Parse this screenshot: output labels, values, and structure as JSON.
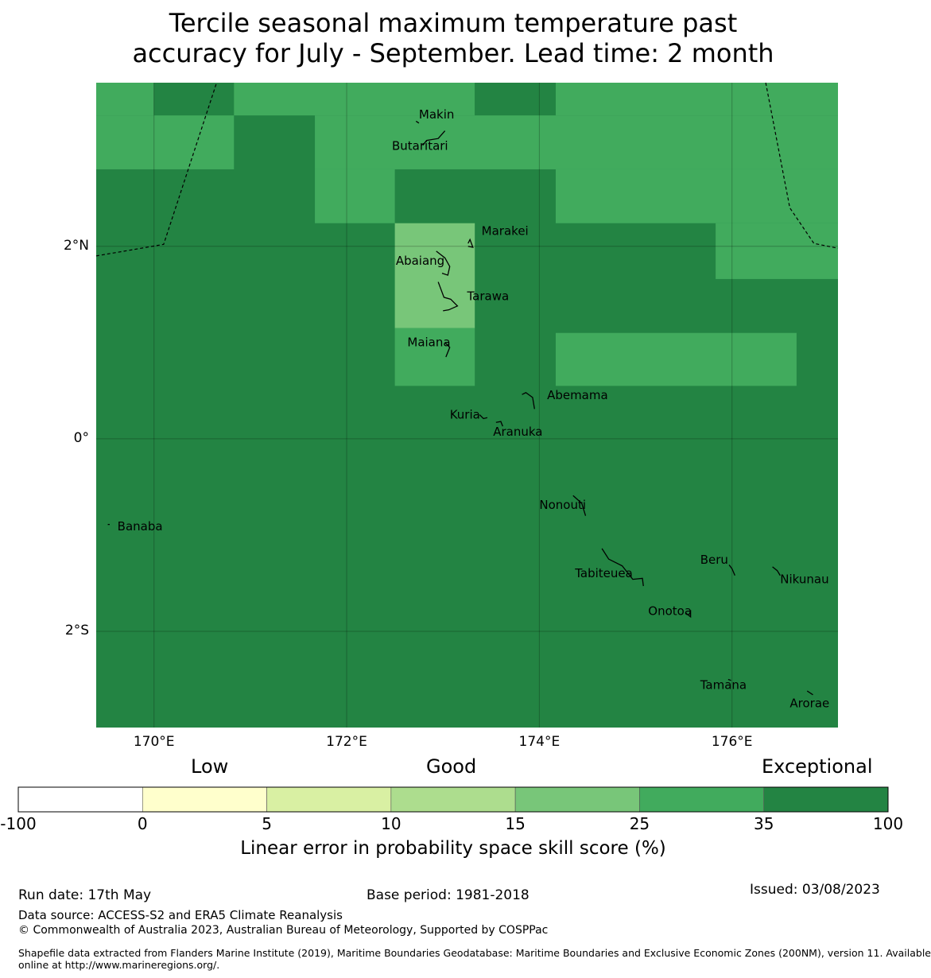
{
  "title": {
    "line1": "Tercile seasonal maximum temperature past",
    "line2": "accuracy for July - September. Lead time: 2 month"
  },
  "map": {
    "lon_range": [
      169.4,
      177.1
    ],
    "lat_range": [
      -3.0,
      3.7
    ],
    "y_ticks": [
      {
        "lat": 2,
        "label": "2°N"
      },
      {
        "lat": 0,
        "label": "0°"
      },
      {
        "lat": -2,
        "label": "2°S"
      }
    ],
    "x_ticks": [
      {
        "lon": 170,
        "label": "170°E"
      },
      {
        "lon": 172,
        "label": "172°E"
      },
      {
        "lon": 174,
        "label": "174°E"
      },
      {
        "lon": 176,
        "label": "176°E"
      }
    ],
    "colors": {
      "cat_35_100": "#238443",
      "cat_25_35": "#41ab5d",
      "cat_15_25": "#78c679",
      "cat_10_15": "#addd8e",
      "cat_5_10": "#d9f0a3",
      "cat_0_5": "#ffffcc",
      "cat_neg": "#ffffff"
    },
    "default_category": "cat_35_100",
    "cells": [
      {
        "lon": [
          169.4,
          170.0
        ],
        "lat": [
          3.36,
          3.7
        ],
        "cat": "cat_25_35"
      },
      {
        "lon": [
          170.0,
          170.83
        ],
        "lat": [
          3.36,
          3.7
        ],
        "cat": "cat_35_100"
      },
      {
        "lon": [
          170.83,
          173.33
        ],
        "lat": [
          3.36,
          3.7
        ],
        "cat": "cat_25_35"
      },
      {
        "lon": [
          173.33,
          174.17
        ],
        "lat": [
          3.36,
          3.7
        ],
        "cat": "cat_35_100"
      },
      {
        "lon": [
          174.17,
          177.1
        ],
        "lat": [
          3.36,
          3.7
        ],
        "cat": "cat_25_35"
      },
      {
        "lon": [
          169.4,
          170.83
        ],
        "lat": [
          2.8,
          3.36
        ],
        "cat": "cat_25_35"
      },
      {
        "lon": [
          171.67,
          177.1
        ],
        "lat": [
          2.8,
          3.36
        ],
        "cat": "cat_25_35"
      },
      {
        "lon": [
          171.67,
          172.5
        ],
        "lat": [
          2.24,
          2.8
        ],
        "cat": "cat_25_35"
      },
      {
        "lon": [
          174.17,
          177.1
        ],
        "lat": [
          2.24,
          2.8
        ],
        "cat": "cat_25_35"
      },
      {
        "lon": [
          172.5,
          173.33
        ],
        "lat": [
          1.15,
          2.24
        ],
        "cat": "cat_15_25"
      },
      {
        "lon": [
          175.83,
          177.1
        ],
        "lat": [
          1.66,
          2.24
        ],
        "cat": "cat_25_35"
      },
      {
        "lon": [
          172.5,
          173.33
        ],
        "lat": [
          0.55,
          1.15
        ],
        "cat": "cat_25_35"
      },
      {
        "lon": [
          174.17,
          176.67
        ],
        "lat": [
          0.55,
          1.1
        ],
        "cat": "cat_25_35"
      }
    ],
    "eez_lines": [
      [
        [
          169.4,
          1.9
        ],
        [
          170.1,
          2.02
        ],
        [
          170.65,
          3.7
        ]
      ],
      [
        [
          176.35,
          3.7
        ],
        [
          176.6,
          2.4
        ],
        [
          176.85,
          2.03
        ],
        [
          177.1,
          1.98
        ]
      ]
    ],
    "islands": [
      {
        "name": "Makin",
        "lon": 173.0,
        "lat": 3.37,
        "label": [
          172.75,
          3.33
        ],
        "shape": [
          [
            172.72,
            3.3
          ],
          [
            172.75,
            3.28
          ]
        ]
      },
      {
        "name": "Butaritari",
        "lon": 172.88,
        "lat": 3.14,
        "label": [
          172.47,
          3.0
        ],
        "shape": [
          [
            172.79,
            3.05
          ],
          [
            172.83,
            3.1
          ],
          [
            172.95,
            3.12
          ],
          [
            173.02,
            3.2
          ]
        ]
      },
      {
        "name": "Marakei",
        "lon": 173.28,
        "lat": 2.0,
        "label": [
          173.4,
          2.12
        ],
        "shape": [
          [
            173.26,
            2.03
          ],
          [
            173.28,
            2.07
          ],
          [
            173.31,
            1.99
          ],
          [
            173.26,
            2.0
          ]
        ]
      },
      {
        "name": "Abaiang",
        "lon": 173.0,
        "lat": 1.83,
        "label": [
          172.51,
          1.81
        ],
        "shape": [
          [
            172.93,
            1.95
          ],
          [
            173.02,
            1.88
          ],
          [
            173.07,
            1.79
          ],
          [
            173.05,
            1.7
          ],
          [
            172.99,
            1.72
          ]
        ]
      },
      {
        "name": "Tarawa",
        "lon": 173.0,
        "lat": 1.42,
        "label": [
          173.25,
          1.44
        ],
        "shape": [
          [
            172.95,
            1.63
          ],
          [
            173.01,
            1.47
          ],
          [
            173.08,
            1.45
          ],
          [
            173.15,
            1.38
          ],
          [
            173.06,
            1.34
          ],
          [
            173.0,
            1.33
          ]
        ]
      },
      {
        "name": "Maiana",
        "lon": 173.0,
        "lat": 0.92,
        "label": [
          172.63,
          0.96
        ],
        "shape": [
          [
            173.02,
            1.0
          ],
          [
            173.07,
            0.95
          ],
          [
            173.03,
            0.85
          ]
        ]
      },
      {
        "name": "Abemama",
        "lon": 173.85,
        "lat": 0.4,
        "label": [
          174.08,
          0.41
        ],
        "shape": [
          [
            173.82,
            0.46
          ],
          [
            173.86,
            0.48
          ],
          [
            173.93,
            0.43
          ],
          [
            173.95,
            0.31
          ]
        ]
      },
      {
        "name": "Kuria",
        "lon": 173.4,
        "lat": 0.22,
        "label": [
          173.07,
          0.21
        ],
        "shape": [
          [
            173.38,
            0.25
          ],
          [
            173.42,
            0.21
          ],
          [
            173.46,
            0.22
          ]
        ]
      },
      {
        "name": "Aranuka",
        "lon": 173.6,
        "lat": 0.17,
        "label": [
          173.52,
          0.03
        ],
        "shape": [
          [
            173.55,
            0.17
          ],
          [
            173.6,
            0.18
          ],
          [
            173.62,
            0.13
          ]
        ]
      },
      {
        "name": "Nonouti",
        "lon": 174.4,
        "lat": -0.66,
        "label": [
          174.0,
          -0.73
        ],
        "shape": [
          [
            174.35,
            -0.59
          ],
          [
            174.44,
            -0.67
          ],
          [
            174.48,
            -0.8
          ]
        ]
      },
      {
        "name": "Banaba",
        "lon": 169.53,
        "lat": -0.86,
        "label": [
          169.62,
          -0.95
        ],
        "shape": [
          [
            169.52,
            -0.89
          ],
          [
            169.54,
            -0.89
          ]
        ]
      },
      {
        "name": "Tabiteuea",
        "lon": 174.8,
        "lat": -1.3,
        "label": [
          174.37,
          -1.44
        ],
        "shape": [
          [
            174.65,
            -1.14
          ],
          [
            174.72,
            -1.25
          ],
          [
            174.86,
            -1.32
          ],
          [
            174.97,
            -1.46
          ],
          [
            175.07,
            -1.45
          ],
          [
            175.08,
            -1.53
          ]
        ]
      },
      {
        "name": "Beru",
        "lon": 175.98,
        "lat": -1.33,
        "label": [
          175.67,
          -1.3
        ],
        "shape": [
          [
            175.97,
            -1.31
          ],
          [
            176.0,
            -1.35
          ],
          [
            176.03,
            -1.42
          ]
        ]
      },
      {
        "name": "Nikunau",
        "lon": 176.45,
        "lat": -1.37,
        "label": [
          176.5,
          -1.5
        ],
        "shape": [
          [
            176.42,
            -1.33
          ],
          [
            176.47,
            -1.37
          ],
          [
            176.5,
            -1.42
          ]
        ]
      },
      {
        "name": "Onotoa",
        "lon": 175.55,
        "lat": -1.8,
        "label": [
          175.13,
          -1.83
        ],
        "shape": [
          [
            175.52,
            -1.81
          ],
          [
            175.57,
            -1.85
          ],
          [
            175.57,
            -1.78
          ]
        ]
      },
      {
        "name": "Tamana",
        "lon": 175.97,
        "lat": -2.5,
        "label": [
          175.67,
          -2.6
        ],
        "shape": [
          [
            175.96,
            -2.5
          ],
          [
            175.99,
            -2.51
          ]
        ]
      },
      {
        "name": "Arorae",
        "lon": 176.82,
        "lat": -2.63,
        "label": [
          176.6,
          -2.79
        ],
        "shape": [
          [
            176.78,
            -2.62
          ],
          [
            176.84,
            -2.66
          ]
        ]
      }
    ]
  },
  "colorbar": {
    "categories": {
      "low": "Low",
      "good": "Good",
      "exceptional": "Exceptional"
    },
    "ticks": [
      "-100",
      "0",
      "5",
      "10",
      "15",
      "25",
      "35",
      "100"
    ],
    "label": "Linear error in probability space skill score (%)"
  },
  "footer": {
    "run_date": "Run date: 17th May",
    "base_period": "Base period: 1981-2018",
    "issued": "Issued: 03/08/2023",
    "data_source": "Data source: ACCESS-S2 and ERA5 Climate Reanalysis",
    "copyright": "© Commonwealth of Australia 2023, Australian Bureau of Meteorology, Supported by COSPPac",
    "shapefile_line1": "Shapefile data extracted from Flanders Marine Institute (2019), Maritime Boundaries Geodatabase: Maritime Boundaries and Exclusive Economic Zones (200NM), version 11. Available",
    "shapefile_line2": "online at http://www.marineregions.org/."
  }
}
